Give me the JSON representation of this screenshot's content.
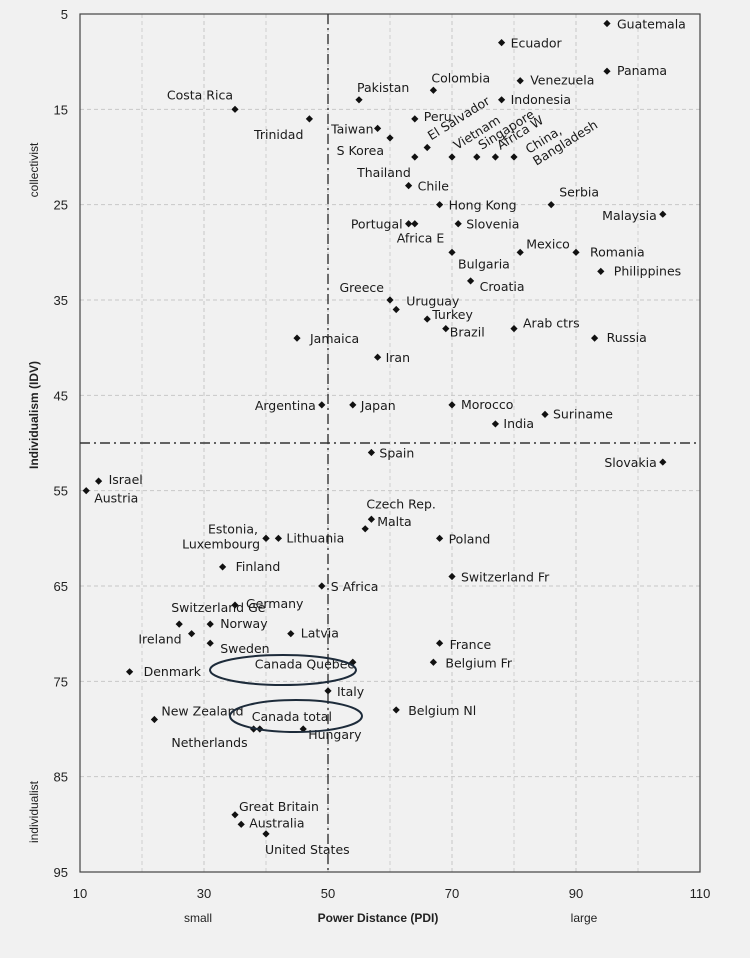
{
  "chart_data": {
    "type": "scatter",
    "xlabel": "Power Distance (PDI)",
    "ylabel": "Individualism (IDV)",
    "x_left_note": "small",
    "x_right_note": "large",
    "y_top_note": "collectivist",
    "y_bottom_note": "individualist",
    "xlim": [
      10,
      110
    ],
    "ylim": [
      5,
      95
    ],
    "y_inverted": true,
    "xticks": [
      10,
      30,
      50,
      70,
      90,
      110
    ],
    "yticks": [
      5,
      15,
      25,
      35,
      45,
      55,
      65,
      75,
      85,
      95
    ],
    "grid": true,
    "reference_lines": {
      "x": 50,
      "y": 50
    },
    "highlighted": [
      "Canada Quebec",
      "Canada total"
    ],
    "points": [
      {
        "label": "Guatemala",
        "x": 95,
        "y": 6
      },
      {
        "label": "Ecuador",
        "x": 78,
        "y": 8
      },
      {
        "label": "Panama",
        "x": 95,
        "y": 11
      },
      {
        "label": "Venezuela",
        "x": 81,
        "y": 12
      },
      {
        "label": "Colombia",
        "x": 67,
        "y": 13
      },
      {
        "label": "Pakistan",
        "x": 55,
        "y": 14
      },
      {
        "label": "Indonesia",
        "x": 78,
        "y": 14
      },
      {
        "label": "Costa Rica",
        "x": 35,
        "y": 15
      },
      {
        "label": "Peru",
        "x": 64,
        "y": 16
      },
      {
        "label": "Trinidad",
        "x": 47,
        "y": 16
      },
      {
        "label": "Taiwan",
        "x": 58,
        "y": 17
      },
      {
        "label": "S Korea",
        "x": 60,
        "y": 18
      },
      {
        "label": "El Salvador",
        "x": 66,
        "y": 19
      },
      {
        "label": "Vietnam",
        "x": 70,
        "y": 20
      },
      {
        "label": "Singapore",
        "x": 74,
        "y": 20
      },
      {
        "label": "Africa W",
        "x": 77,
        "y": 20
      },
      {
        "label": "China, Bangladesh",
        "x": 80,
        "y": 20
      },
      {
        "label": "Thailand",
        "x": 64,
        "y": 20
      },
      {
        "label": "Chile",
        "x": 63,
        "y": 23
      },
      {
        "label": "Hong Kong",
        "x": 68,
        "y": 25
      },
      {
        "label": "Serbia",
        "x": 86,
        "y": 25
      },
      {
        "label": "Malaysia",
        "x": 104,
        "y": 26
      },
      {
        "label": "Portugal",
        "x": 63,
        "y": 27
      },
      {
        "label": "Africa E",
        "x": 64,
        "y": 27
      },
      {
        "label": "Slovenia",
        "x": 71,
        "y": 27
      },
      {
        "label": "Mexico",
        "x": 81,
        "y": 30
      },
      {
        "label": "Romania",
        "x": 90,
        "y": 30
      },
      {
        "label": "Bulgaria",
        "x": 70,
        "y": 30
      },
      {
        "label": "Philippines",
        "x": 94,
        "y": 32
      },
      {
        "label": "Croatia",
        "x": 73,
        "y": 33
      },
      {
        "label": "Greece",
        "x": 60,
        "y": 35
      },
      {
        "label": "Uruguay",
        "x": 61,
        "y": 36
      },
      {
        "label": "Turkey",
        "x": 66,
        "y": 37
      },
      {
        "label": "Brazil",
        "x": 69,
        "y": 38
      },
      {
        "label": "Arab ctrs",
        "x": 80,
        "y": 38
      },
      {
        "label": "Russia",
        "x": 93,
        "y": 39
      },
      {
        "label": "Jamaica",
        "x": 45,
        "y": 39
      },
      {
        "label": "Iran",
        "x": 58,
        "y": 41
      },
      {
        "label": "Argentina",
        "x": 49,
        "y": 46
      },
      {
        "label": "Japan",
        "x": 54,
        "y": 46
      },
      {
        "label": "Morocco",
        "x": 70,
        "y": 46
      },
      {
        "label": "Suriname",
        "x": 85,
        "y": 47
      },
      {
        "label": "India",
        "x": 77,
        "y": 48
      },
      {
        "label": "Spain",
        "x": 57,
        "y": 51
      },
      {
        "label": "Slovakia",
        "x": 104,
        "y": 52
      },
      {
        "label": "Israel",
        "x": 13,
        "y": 54
      },
      {
        "label": "Austria",
        "x": 11,
        "y": 55
      },
      {
        "label": "Czech Rep.",
        "x": 57,
        "y": 58
      },
      {
        "label": "Malta",
        "x": 56,
        "y": 59
      },
      {
        "label": "Estonia,",
        "x": 40,
        "y": 60
      },
      {
        "label": "Luxembourg",
        "x": 40,
        "y": 60
      },
      {
        "label": "Lithuania",
        "x": 42,
        "y": 60
      },
      {
        "label": "Poland",
        "x": 68,
        "y": 60
      },
      {
        "label": "Finland",
        "x": 33,
        "y": 63
      },
      {
        "label": "Switzerland Fr",
        "x": 70,
        "y": 64
      },
      {
        "label": "S Africa",
        "x": 49,
        "y": 65
      },
      {
        "label": "Germany",
        "x": 35,
        "y": 67
      },
      {
        "label": "Switzerland Ge",
        "x": 26,
        "y": 69
      },
      {
        "label": "Norway",
        "x": 31,
        "y": 69
      },
      {
        "label": "Ireland",
        "x": 28,
        "y": 70
      },
      {
        "label": "Latvia",
        "x": 44,
        "y": 70
      },
      {
        "label": "Sweden",
        "x": 31,
        "y": 71
      },
      {
        "label": "France",
        "x": 68,
        "y": 71
      },
      {
        "label": "Canada Quebec",
        "x": 54,
        "y": 73
      },
      {
        "label": "Belgium Fr",
        "x": 67,
        "y": 73
      },
      {
        "label": "Denmark",
        "x": 18,
        "y": 74
      },
      {
        "label": "Italy",
        "x": 50,
        "y": 76
      },
      {
        "label": "Belgium Nl",
        "x": 61,
        "y": 78
      },
      {
        "label": "New Zealand",
        "x": 22,
        "y": 79
      },
      {
        "label": "Canada total",
        "x": 39,
        "y": 80
      },
      {
        "label": "Netherlands",
        "x": 38,
        "y": 80
      },
      {
        "label": "Hungary",
        "x": 46,
        "y": 80
      },
      {
        "label": "Great Britain",
        "x": 35,
        "y": 89
      },
      {
        "label": "Australia",
        "x": 36,
        "y": 90
      },
      {
        "label": "United States",
        "x": 40,
        "y": 91
      }
    ]
  }
}
